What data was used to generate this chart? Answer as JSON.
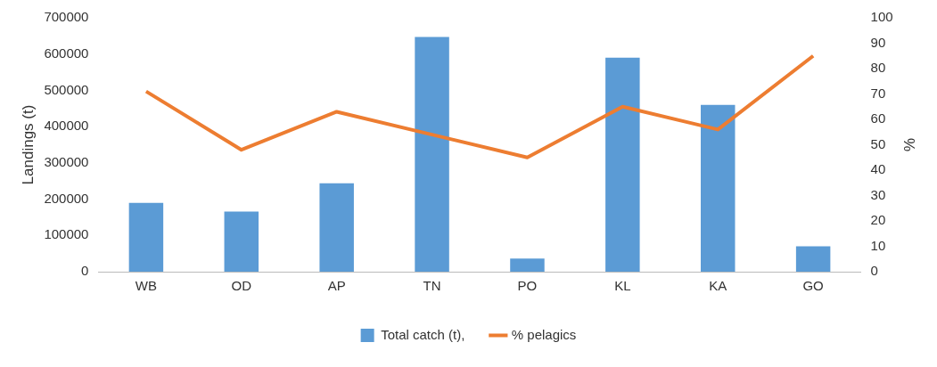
{
  "chart_data": {
    "type": "bar",
    "categories": [
      "WB",
      "OD",
      "AP",
      "TN",
      "PO",
      "KL",
      "KA",
      "GO"
    ],
    "ylabel": "Landings (t)",
    "y2label": "%",
    "ylim": [
      0,
      700000
    ],
    "yticks": [
      0,
      100000,
      200000,
      300000,
      400000,
      500000,
      600000,
      700000
    ],
    "y2lim": [
      0,
      100
    ],
    "y2ticks": [
      0,
      10,
      20,
      30,
      40,
      50,
      60,
      70,
      80,
      90,
      100
    ],
    "grid": false,
    "legend": "bottom",
    "series": [
      {
        "name": "Total catch (t),",
        "color": "#5b9bd5",
        "values": [
          190000,
          166000,
          244000,
          647000,
          36000,
          590000,
          460000,
          70000
        ]
      },
      {
        "name": "% pelagics",
        "type": "line",
        "axis": "y2",
        "color": "#ed7d31",
        "values": [
          71,
          48,
          63,
          54,
          45,
          65,
          56,
          85
        ]
      }
    ]
  }
}
